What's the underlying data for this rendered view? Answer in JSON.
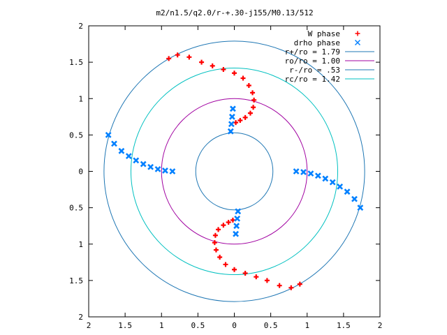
{
  "chart_data": {
    "type": "scatter",
    "title": "m2/n1.5/q2.0/r-+.30-j155/M0.13/512",
    "xlim": [
      -2,
      2
    ],
    "ylim": [
      -2,
      2
    ],
    "x_ticks": [
      {
        "value": -2,
        "label": "2"
      },
      {
        "value": -1.5,
        "label": "1.5"
      },
      {
        "value": -1,
        "label": "1"
      },
      {
        "value": -0.5,
        "label": "0.5"
      },
      {
        "value": 0,
        "label": "0"
      },
      {
        "value": 0.5,
        "label": "0.5"
      },
      {
        "value": 1,
        "label": "1"
      },
      {
        "value": 1.5,
        "label": "1.5"
      },
      {
        "value": 2,
        "label": "2"
      }
    ],
    "y_ticks": [
      {
        "value": 2,
        "label": "2"
      },
      {
        "value": 1.5,
        "label": "1.5"
      },
      {
        "value": 1,
        "label": "1"
      },
      {
        "value": 0.5,
        "label": "0.5"
      },
      {
        "value": 0,
        "label": "0"
      },
      {
        "value": -0.5,
        "label": "0.5"
      },
      {
        "value": -1,
        "label": "1"
      },
      {
        "value": -1.5,
        "label": "1.5"
      },
      {
        "value": -2,
        "label": "2"
      }
    ],
    "legend_position": "top-right",
    "grid": false,
    "series": [
      {
        "name": "W phase",
        "marker": "plus",
        "color": "#ff0000",
        "x": [
          -0.9,
          -0.78,
          -0.62,
          -0.45,
          -0.3,
          -0.15,
          0.0,
          0.12,
          0.2,
          0.25,
          0.27,
          0.26,
          0.22,
          0.15,
          0.08,
          0.02,
          0.9,
          0.78,
          0.62,
          0.45,
          0.3,
          0.15,
          0.0,
          -0.12,
          -0.2,
          -0.25,
          -0.27,
          -0.26,
          -0.22,
          -0.15,
          -0.08,
          -0.02
        ],
        "y": [
          1.55,
          1.6,
          1.57,
          1.5,
          1.45,
          1.4,
          1.35,
          1.28,
          1.18,
          1.08,
          0.98,
          0.88,
          0.8,
          0.74,
          0.7,
          0.67,
          -1.55,
          -1.6,
          -1.57,
          -1.5,
          -1.45,
          -1.4,
          -1.35,
          -1.28,
          -1.18,
          -1.08,
          -0.98,
          -0.88,
          -0.8,
          -0.74,
          -0.7,
          -0.67
        ]
      },
      {
        "name": "drho phase",
        "marker": "cross",
        "color": "#0080ff",
        "x": [
          -1.73,
          -1.65,
          -1.55,
          -1.45,
          -1.35,
          -1.25,
          -1.15,
          -1.05,
          -0.95,
          -0.85,
          1.73,
          1.65,
          1.55,
          1.45,
          1.35,
          1.25,
          1.15,
          1.05,
          0.95,
          0.85,
          -0.05,
          -0.04,
          -0.03,
          -0.02,
          0.05,
          0.04,
          0.03,
          0.02
        ],
        "y": [
          0.5,
          0.38,
          0.28,
          0.21,
          0.15,
          0.1,
          0.06,
          0.03,
          0.01,
          0.0,
          -0.5,
          -0.38,
          -0.28,
          -0.21,
          -0.15,
          -0.1,
          -0.06,
          -0.03,
          -0.01,
          0.0,
          0.55,
          0.65,
          0.75,
          0.86,
          -0.55,
          -0.65,
          -0.75,
          -0.86
        ]
      }
    ],
    "circles": [
      {
        "name": "r+/ro = 1.79",
        "radius": 1.79,
        "color": "#1f77b4"
      },
      {
        "name": "ro/ro = 1.00",
        "radius": 1.0,
        "color": "#a000a0"
      },
      {
        "name": "r-/ro = .53",
        "radius": 0.53,
        "color": "#1f77b4"
      },
      {
        "name": "rc/ro = 1.42",
        "radius": 1.42,
        "color": "#00c0c0"
      }
    ]
  }
}
